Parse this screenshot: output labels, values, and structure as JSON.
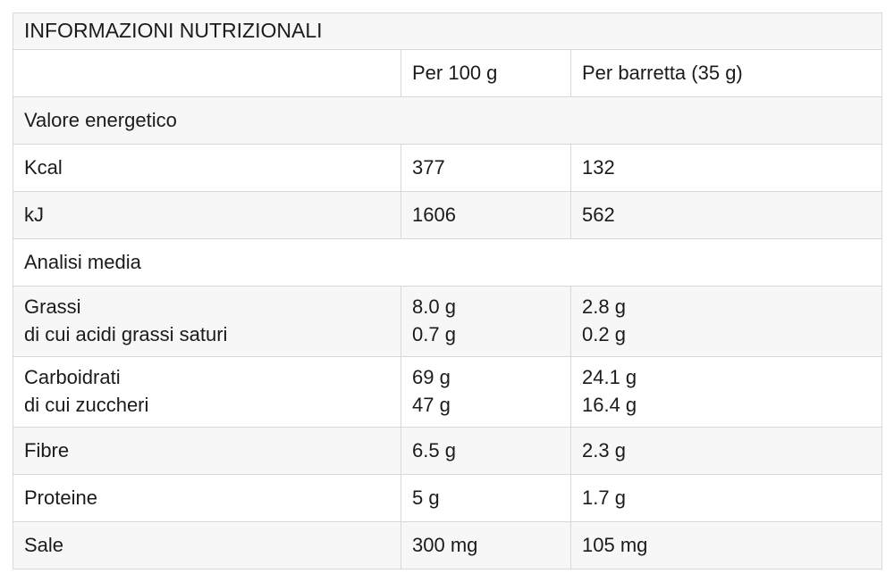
{
  "table": {
    "title": "INFORMAZIONI NUTRIZIONALI",
    "columns": {
      "label": "",
      "per_100g": "Per 100 g",
      "per_barretta": "Per barretta (35 g)"
    },
    "rows": [
      {
        "type": "section",
        "label": "Valore energetico"
      },
      {
        "type": "data",
        "label": "Kcal",
        "per_100g": "377",
        "per_barretta": "132"
      },
      {
        "type": "data",
        "label": "kJ",
        "per_100g": "1606",
        "per_barretta": "562"
      },
      {
        "type": "section",
        "label": "Analisi media"
      },
      {
        "type": "data",
        "label": "Grassi",
        "sublabel": "di cui acidi grassi saturi",
        "per_100g": "8.0 g",
        "per_100g_sub": "0.7 g",
        "per_barretta": "2.8 g",
        "per_barretta_sub": "0.2 g"
      },
      {
        "type": "data",
        "label": "Carboidrati",
        "sublabel": "di cui zuccheri",
        "per_100g": "69 g",
        "per_100g_sub": "47 g",
        "per_barretta": "24.1 g",
        "per_barretta_sub": "16.4 g"
      },
      {
        "type": "data",
        "label": "Fibre",
        "per_100g": "6.5 g",
        "per_barretta": "2.3 g"
      },
      {
        "type": "data",
        "label": "Proteine",
        "per_100g": "5 g",
        "per_barretta": "1.7 g"
      },
      {
        "type": "data",
        "label": "Sale",
        "per_100g": "300 mg",
        "per_barretta": "105 mg"
      }
    ],
    "colors": {
      "zebra_row_bg": "#f7f7f7",
      "row_bg": "#ffffff",
      "border": "#d8d8d8",
      "outer_border": "#c9c9c9",
      "text": "#1b1b1b"
    }
  }
}
